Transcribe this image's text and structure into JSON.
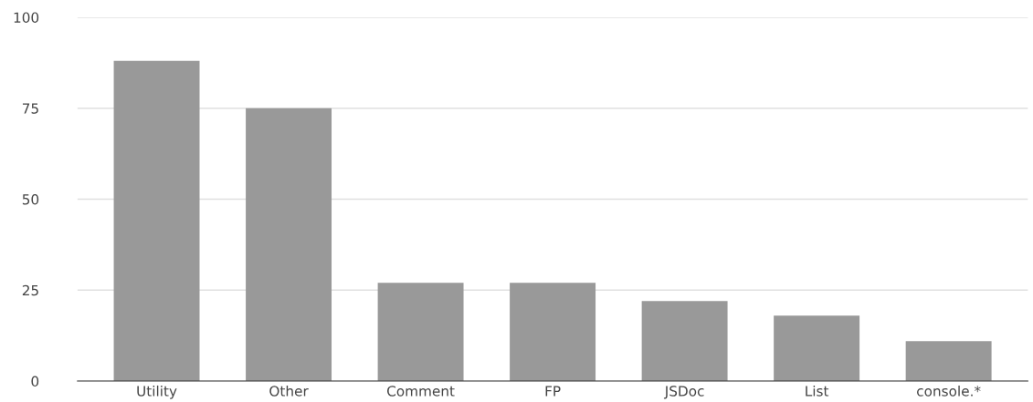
{
  "chart_data": {
    "type": "bar",
    "categories": [
      "Utility",
      "Other",
      "Comment",
      "FP",
      "JSDoc",
      "List",
      "console.*"
    ],
    "values": [
      88,
      75,
      27,
      27,
      22,
      18,
      11
    ],
    "color": "#999999",
    "ylim": [
      0,
      100
    ],
    "yticks": [
      0,
      25,
      50,
      75,
      100
    ],
    "grid": "y"
  }
}
